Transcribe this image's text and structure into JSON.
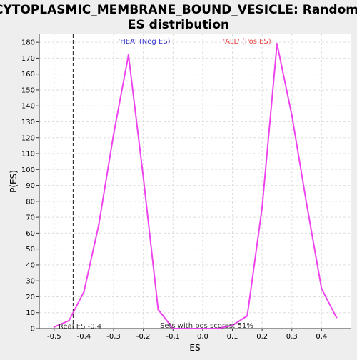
{
  "colors": {
    "background": "#eeeeee",
    "plot_background": "#ffffff",
    "grid": "#dddddd",
    "axis": "#333333",
    "series": "#ee44ee",
    "real_es_line": "#333333",
    "neg_label": "#3333cc",
    "pos_label": "#ee4444"
  },
  "chart_data": {
    "type": "line",
    "title": "CYTOPLASMIC_MEMBRANE_BOUND_VESICLE: Random ES distribution",
    "title_lines": [
      "CYTOPLASMIC_MEMBRANE_BOUND_VESICLE: Random",
      "ES distribution"
    ],
    "xlabel": "ES",
    "ylabel": "P(ES)",
    "xlim": [
      -0.55,
      0.5
    ],
    "ylim": [
      0,
      185
    ],
    "xticks": [
      -0.5,
      -0.4,
      -0.3,
      -0.2,
      -0.1,
      0.0,
      0.1,
      0.2,
      0.3,
      0.4
    ],
    "xtick_labels": [
      "-0,5",
      "-0,4",
      "-0,3",
      "-0,2",
      "-0,1",
      "0,0",
      "0,1",
      "0,2",
      "0,3",
      "0,4"
    ],
    "yticks": [
      0,
      10,
      20,
      30,
      40,
      50,
      60,
      70,
      80,
      90,
      100,
      110,
      120,
      130,
      140,
      150,
      160,
      170,
      180
    ],
    "ytick_labels": [
      "0",
      "10",
      "20",
      "30",
      "40",
      "50",
      "60",
      "70",
      "80",
      "90",
      "100",
      "110",
      "120",
      "130",
      "140",
      "150",
      "160",
      "170",
      "180"
    ],
    "grid": true,
    "series": [
      {
        "x": [
          -0.5,
          -0.45,
          -0.4,
          -0.35,
          -0.3,
          -0.25,
          -0.2,
          -0.15,
          -0.1,
          -0.05,
          0.0,
          0.05,
          0.1,
          0.15,
          0.2,
          0.25,
          0.3,
          0.35,
          0.4,
          0.45
        ],
        "y": [
          1,
          5,
          23,
          65,
          122,
          172,
          95,
          12,
          0,
          0,
          0,
          0,
          2,
          8,
          76,
          179,
          134,
          78,
          25,
          7
        ]
      }
    ],
    "real_es": -0.435,
    "annotations": {
      "neg_label": "'HEA' (Neg ES)",
      "pos_label": "'ALL' (Pos ES)",
      "real_es_label": "Real ES -0,4",
      "pos_scores_label": "Sets with pos scores: 51%"
    }
  }
}
